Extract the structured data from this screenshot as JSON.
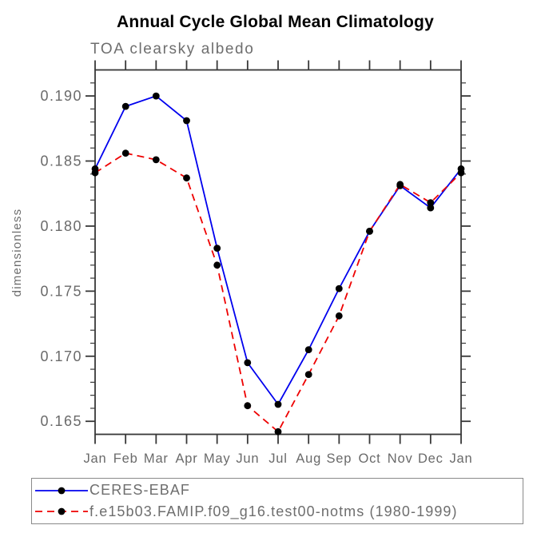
{
  "title": "Annual Cycle Global Mean Climatology",
  "subtitle": "TOA clearsky albedo",
  "chart_data": {
    "type": "line",
    "title": "Annual Cycle Global Mean Climatology",
    "subtitle": "TOA clearsky albedo",
    "xlabel": "",
    "ylabel": "dimensionless",
    "categories": [
      "Jan",
      "Feb",
      "Mar",
      "Apr",
      "May",
      "Jun",
      "Jul",
      "Aug",
      "Sep",
      "Oct",
      "Nov",
      "Dec",
      "Jan"
    ],
    "series": [
      {
        "name": "CERES-EBAF",
        "color": "#0000ee",
        "line_style": "solid",
        "marker": "filled-circle",
        "values": [
          0.1844,
          0.1892,
          0.19,
          0.1881,
          0.1783,
          0.1695,
          0.1663,
          0.1705,
          0.1752,
          0.1796,
          0.1831,
          0.1814,
          0.1844
        ]
      },
      {
        "name": "f.e15b03.FAMIP.f09_g16.test00-notms (1980-1999)",
        "color": "#ee0000",
        "line_style": "dashed",
        "marker": "filled-circle",
        "values": [
          0.1841,
          0.1856,
          0.1851,
          0.1837,
          0.177,
          0.1662,
          0.1642,
          0.1686,
          0.1731,
          0.1796,
          0.1832,
          0.1818,
          0.1841
        ]
      }
    ],
    "ylim": [
      0.164,
      0.192
    ],
    "ytick_labels": [
      "0.165",
      "0.170",
      "0.175",
      "0.180",
      "0.185",
      "0.190"
    ],
    "ytick_major_step": 0.005,
    "ytick_minor_step": 0.001,
    "marker_color": "#000000",
    "grid": false,
    "legend_position": "bottom"
  }
}
